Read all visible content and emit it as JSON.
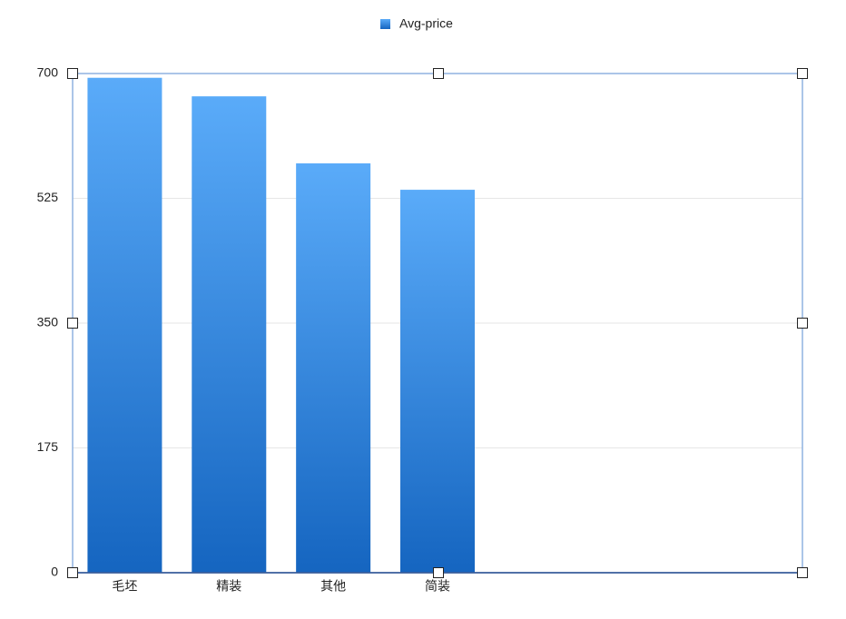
{
  "chart_data": {
    "type": "bar",
    "categories": [
      "毛坯",
      "精装",
      "其他",
      "简装"
    ],
    "series": [
      {
        "name": "Avg-price",
        "color": "#1565c0",
        "values": [
          694,
          668,
          574,
          537
        ]
      }
    ],
    "ylim": [
      0,
      700
    ],
    "yticks": [
      0,
      175,
      350,
      525,
      700
    ],
    "grid": true
  }
}
